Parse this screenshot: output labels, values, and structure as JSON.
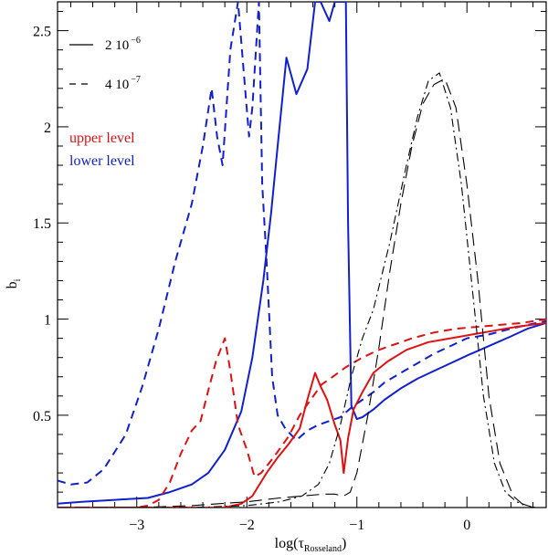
{
  "chart_data": {
    "type": "line",
    "title": "",
    "xlabel_main": "log(τ",
    "xlabel_sub": "Rosseland",
    "xlabel_close": ")",
    "ylabel_main": "b",
    "ylabel_sub": "i",
    "xlim": [
      -3.72,
      0.72
    ],
    "ylim": [
      0.02,
      2.65
    ],
    "xticks": [
      -3,
      -2,
      -1,
      0
    ],
    "xtick_labels": [
      "−3",
      "−2",
      "−1",
      "0"
    ],
    "yticks": [
      0.5,
      1,
      1.5,
      2,
      2.5
    ],
    "ytick_labels": [
      "0.5",
      "1",
      "1.5",
      "2",
      "2.5"
    ],
    "legend": {
      "position": "top-left",
      "styles": [
        {
          "dash": "solid",
          "label": "2 10",
          "exp": "−6"
        },
        {
          "dash": "dashed",
          "label": "4 10",
          "exp": "−7"
        }
      ],
      "colors": [
        {
          "label": "upper level",
          "color": "#e01010"
        },
        {
          "label": "lower level",
          "color": "#1020d0"
        }
      ]
    },
    "series": [
      {
        "name": "lower level, 4 10^-7",
        "color": "#1020d0",
        "dash": "dashed",
        "width": 2,
        "x": [
          -3.72,
          -3.6,
          -3.45,
          -3.3,
          -3.1,
          -2.95,
          -2.8,
          -2.65,
          -2.5,
          -2.4,
          -2.32,
          -2.27,
          -2.22,
          -2.15,
          -2.08,
          -2.03,
          -1.98,
          -1.95,
          -1.89,
          -1.86,
          -1.82,
          -1.77,
          -1.72,
          -1.65,
          -1.55,
          -1.45,
          -1.35,
          -1.25,
          -1.15,
          -1.05,
          -0.95,
          -0.85,
          -0.75,
          -0.6,
          -0.45,
          -0.3,
          -0.15,
          0,
          0.2,
          0.4,
          0.55,
          0.72
        ],
        "y": [
          0.16,
          0.14,
          0.15,
          0.22,
          0.4,
          0.65,
          0.95,
          1.3,
          1.6,
          1.9,
          2.2,
          1.95,
          1.8,
          2.4,
          2.65,
          2.3,
          1.95,
          2.1,
          2.65,
          1.7,
          1.3,
          0.7,
          0.5,
          0.43,
          0.37,
          0.42,
          0.45,
          0.47,
          0.49,
          0.54,
          0.58,
          0.62,
          0.67,
          0.72,
          0.77,
          0.82,
          0.86,
          0.9,
          0.92,
          0.95,
          0.97,
          0.99
        ]
      },
      {
        "name": "lower level, 2 10^-6",
        "color": "#1020d0",
        "dash": "solid",
        "width": 2,
        "x": [
          -3.72,
          -3.5,
          -3.2,
          -2.9,
          -2.7,
          -2.5,
          -2.35,
          -2.2,
          -2.05,
          -1.95,
          -1.85,
          -1.78,
          -1.72,
          -1.64,
          -1.55,
          -1.45,
          -1.38,
          -1.33,
          -1.25,
          -1.2,
          -1.15,
          -1.1,
          -1.08,
          -1.05,
          -1.0,
          -0.95,
          -0.85,
          -0.75,
          -0.6,
          -0.45,
          -0.3,
          -0.15,
          0,
          0.2,
          0.4,
          0.55,
          0.72
        ],
        "y": [
          0.04,
          0.05,
          0.06,
          0.07,
          0.1,
          0.14,
          0.2,
          0.32,
          0.52,
          0.8,
          1.2,
          1.55,
          1.9,
          2.36,
          2.17,
          2.3,
          2.65,
          2.65,
          2.55,
          2.65,
          2.65,
          2.65,
          1.5,
          0.55,
          0.48,
          0.49,
          0.53,
          0.58,
          0.64,
          0.69,
          0.73,
          0.77,
          0.81,
          0.86,
          0.91,
          0.95,
          0.98
        ]
      },
      {
        "name": "upper level, 4 10^-7",
        "color": "#e01010",
        "dash": "dashed",
        "width": 2,
        "x": [
          -3.72,
          -3.5,
          -3.2,
          -3.0,
          -2.9,
          -2.8,
          -2.7,
          -2.6,
          -2.5,
          -2.42,
          -2.35,
          -2.28,
          -2.2,
          -2.15,
          -2.08,
          -2.0,
          -1.93,
          -1.87,
          -1.8,
          -1.72,
          -1.62,
          -1.52,
          -1.42,
          -1.32,
          -1.22,
          -1.1,
          -0.95,
          -0.8,
          -0.65,
          -0.5,
          -0.3,
          -0.1,
          0.1,
          0.3,
          0.5,
          0.72
        ],
        "y": [
          0.02,
          0.02,
          0.02,
          0.02,
          0.03,
          0.06,
          0.15,
          0.3,
          0.42,
          0.47,
          0.63,
          0.78,
          0.9,
          0.73,
          0.45,
          0.32,
          0.18,
          0.2,
          0.25,
          0.31,
          0.39,
          0.5,
          0.58,
          0.66,
          0.7,
          0.75,
          0.8,
          0.84,
          0.87,
          0.9,
          0.93,
          0.95,
          0.96,
          0.97,
          0.98,
          1.0
        ]
      },
      {
        "name": "upper level, 2 10^-6",
        "color": "#e01010",
        "dash": "solid",
        "width": 2,
        "x": [
          -3.72,
          -3.3,
          -2.9,
          -2.5,
          -2.2,
          -2.05,
          -1.95,
          -1.82,
          -1.72,
          -1.62,
          -1.52,
          -1.45,
          -1.38,
          -1.33,
          -1.27,
          -1.2,
          -1.15,
          -1.12,
          -1.08,
          -1.03,
          -0.95,
          -0.85,
          -0.72,
          -0.55,
          -0.35,
          -0.15,
          0.05,
          0.25,
          0.45,
          0.72
        ],
        "y": [
          0.02,
          0.02,
          0.02,
          0.02,
          0.02,
          0.04,
          0.08,
          0.2,
          0.28,
          0.35,
          0.43,
          0.58,
          0.72,
          0.65,
          0.58,
          0.45,
          0.37,
          0.2,
          0.38,
          0.53,
          0.62,
          0.72,
          0.78,
          0.84,
          0.88,
          0.9,
          0.92,
          0.94,
          0.96,
          0.98
        ]
      },
      {
        "name": "2 10^-6 (black)",
        "color": "#000000",
        "dash": "dashdot",
        "width": 1.1,
        "x": [
          -3.72,
          -3.0,
          -2.5,
          -2.0,
          -1.7,
          -1.5,
          -1.35,
          -1.25,
          -1.15,
          -1.05,
          -0.95,
          -0.85,
          -0.7,
          -0.55,
          -0.45,
          -0.35,
          -0.25,
          -0.15,
          -0.05,
          0.05,
          0.15,
          0.25,
          0.35,
          0.45,
          0.55,
          0.62
        ],
        "y": [
          0.02,
          0.02,
          0.02,
          0.03,
          0.05,
          0.08,
          0.14,
          0.25,
          0.45,
          0.7,
          0.9,
          1.05,
          1.4,
          1.8,
          2.05,
          2.24,
          2.28,
          2.1,
          1.7,
          1.15,
          0.6,
          0.25,
          0.1,
          0.05,
          0.03,
          0.02
        ]
      },
      {
        "name": "4 10^-7 (black)",
        "color": "#000000",
        "dash": "longdash",
        "width": 1.1,
        "x": [
          -3.72,
          -3.0,
          -2.5,
          -2.0,
          -1.7,
          -1.5,
          -1.3,
          -1.2,
          -1.12,
          -1.06,
          -1.0,
          -0.9,
          -0.8,
          -0.7,
          -0.6,
          -0.5,
          -0.4,
          -0.3,
          -0.2,
          -0.1,
          0,
          0.1,
          0.2,
          0.3,
          0.42,
          0.52,
          0.62
        ],
        "y": [
          0.02,
          0.02,
          0.03,
          0.05,
          0.07,
          0.08,
          0.09,
          0.09,
          0.08,
          0.1,
          0.2,
          0.5,
          0.85,
          1.25,
          1.6,
          1.9,
          2.12,
          2.22,
          2.25,
          2.1,
          1.7,
          1.2,
          0.6,
          0.25,
          0.08,
          0.03,
          0.02
        ]
      }
    ]
  }
}
